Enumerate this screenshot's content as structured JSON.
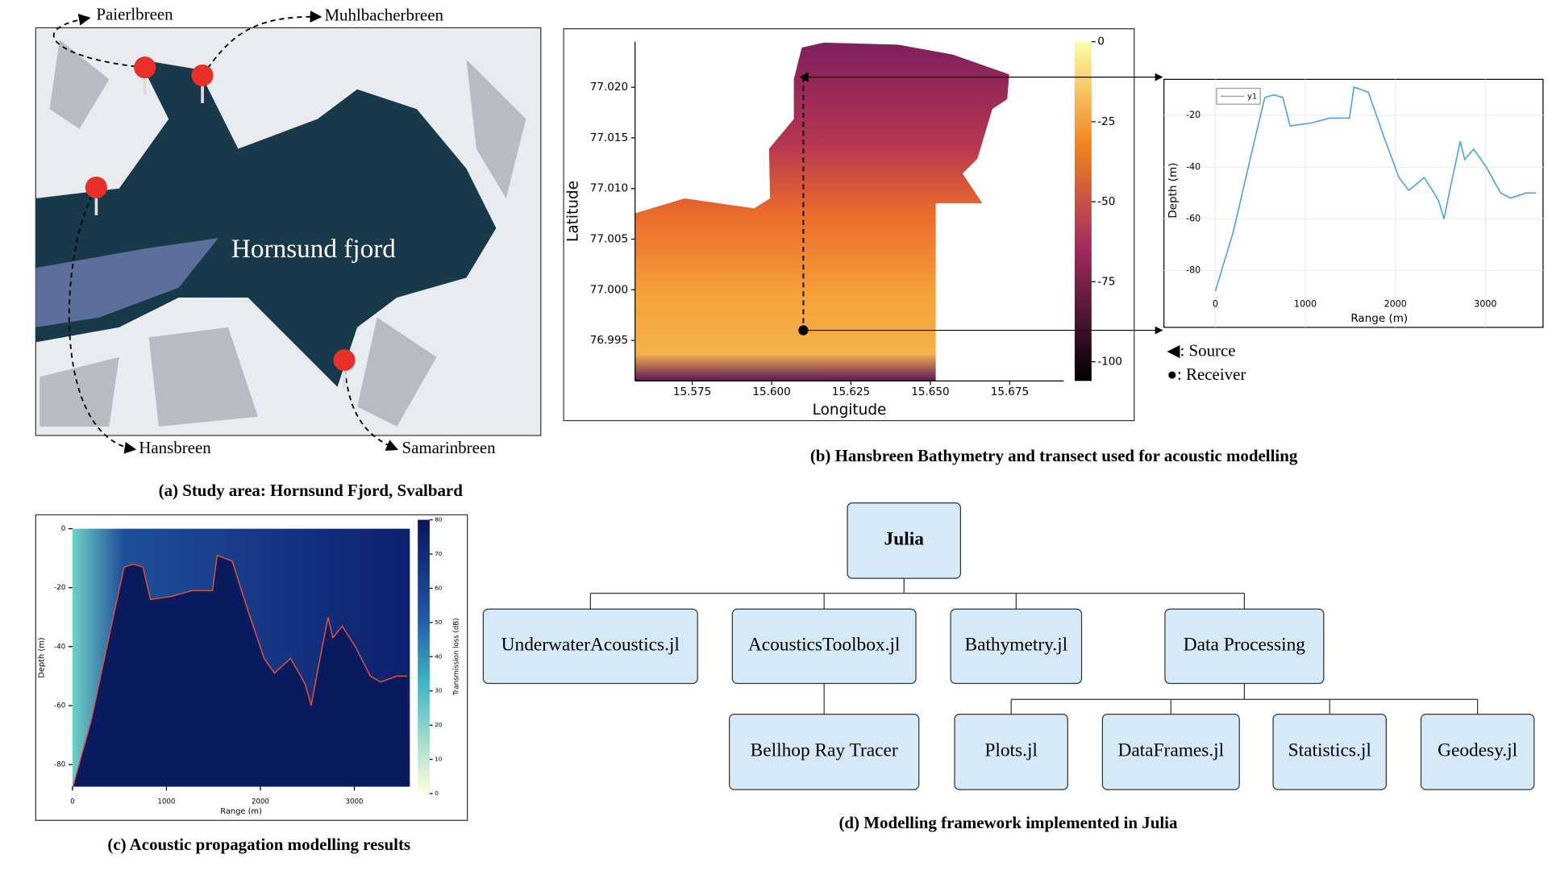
{
  "study_area": {
    "caption": "(a) Study area: Hornsund Fjord, Svalbard",
    "fjord_label": "Hornsund fjord",
    "glaciers": [
      "Paierlbreen",
      "Muhlbacherbreen",
      "Hansbreen",
      "Samarinbreen"
    ]
  },
  "chart_data": [
    {
      "type": "heatmap",
      "title": "(b) Hansbreen Bathymetry and transect used for acoustic modelling",
      "xlabel": "Longitude",
      "ylabel": "Latitude",
      "xlim": [
        15.557,
        15.692
      ],
      "xticks": [
        15.575,
        {
          "value": 15.6,
          "label": "15.600"
        },
        15.625,
        {
          "value": 15.65,
          "label": "15.650"
        },
        15.675
      ],
      "ylim": [
        76.991,
        77.0245
      ],
      "yticks": [
        76.995,
        {
          "value": 77.0,
          "label": "77.000"
        },
        77.005,
        {
          "value": 77.01,
          "label": "77.010"
        },
        77.015,
        {
          "value": 77.02,
          "label": "77.020"
        }
      ],
      "colorbar": {
        "lim": [
          -106,
          0
        ],
        "ticks": [
          0,
          -25,
          -50,
          -75,
          -100
        ]
      },
      "transect": {
        "lon": [
          15.61,
          15.61
        ],
        "lat": [
          77.021,
          76.996
        ]
      },
      "markers_legend": [
        "◀: Source",
        "●: Receiver"
      ]
    },
    {
      "type": "line",
      "xlabel": "Range (m)",
      "ylabel": "Depth (m)",
      "xlim": [
        -570,
        3640
      ],
      "xticks": [
        0,
        1000,
        2000,
        3000
      ],
      "ylim": [
        -102,
        -6
      ],
      "yticks": [
        -20,
        -40,
        -60,
        -80
      ],
      "grid": true,
      "x": [
        0,
        200,
        400,
        550,
        650,
        750,
        830,
        1050,
        1270,
        1490,
        1540,
        1700,
        1870,
        2040,
        2150,
        2320,
        2430,
        2480,
        2540,
        2610,
        2690,
        2720,
        2770,
        2870,
        3010,
        3170,
        3280,
        3450,
        3560
      ],
      "series": [
        {
          "name": "y1",
          "color": "#4aa3df",
          "values": [
            -88,
            -65,
            -35,
            -13,
            -12,
            -13,
            -24,
            -23,
            -21,
            -21,
            -9,
            -11,
            -28,
            -44,
            -49,
            -44,
            -50,
            -53,
            -60,
            -48,
            -35,
            -30,
            -37,
            -33,
            -40,
            -50,
            -52,
            -50,
            -50
          ]
        }
      ]
    },
    {
      "type": "heatmap",
      "title": "(c) Acoustic propagation modelling results",
      "xlabel": "Range (m)",
      "ylabel": "Depth (m)",
      "xlim": [
        0,
        3590
      ],
      "xticks": [
        0,
        1000,
        2000,
        3000
      ],
      "ylim": [
        -87.5,
        0
      ],
      "yticks": [
        0,
        -20,
        -40,
        -60,
        -80
      ],
      "colorbar": {
        "label": "Transmission loss (dB)",
        "lim": [
          0,
          80
        ],
        "ticks": [
          0,
          10,
          20,
          30,
          40,
          50,
          60,
          70,
          80
        ]
      },
      "overlay_color": "#e0513a"
    }
  ],
  "framework": {
    "caption": "(d) Modelling framework implemented in Julia",
    "root": {
      "label": "Julia",
      "children": [
        {
          "label": "UnderwaterAcoustics.jl",
          "children": []
        },
        {
          "label": "AcousticsToolbox.jl",
          "children": [
            {
              "label": "Bellhop Ray Tracer",
              "children": []
            }
          ]
        },
        {
          "label": "Bathymetry.jl",
          "children": []
        },
        {
          "label": "Data Processing",
          "children": [
            {
              "label": "Plots.jl",
              "children": []
            },
            {
              "label": "DataFrames.jl",
              "children": []
            },
            {
              "label": "Statistics.jl",
              "children": []
            },
            {
              "label": "Geodesy.jl",
              "children": []
            }
          ]
        }
      ]
    }
  }
}
